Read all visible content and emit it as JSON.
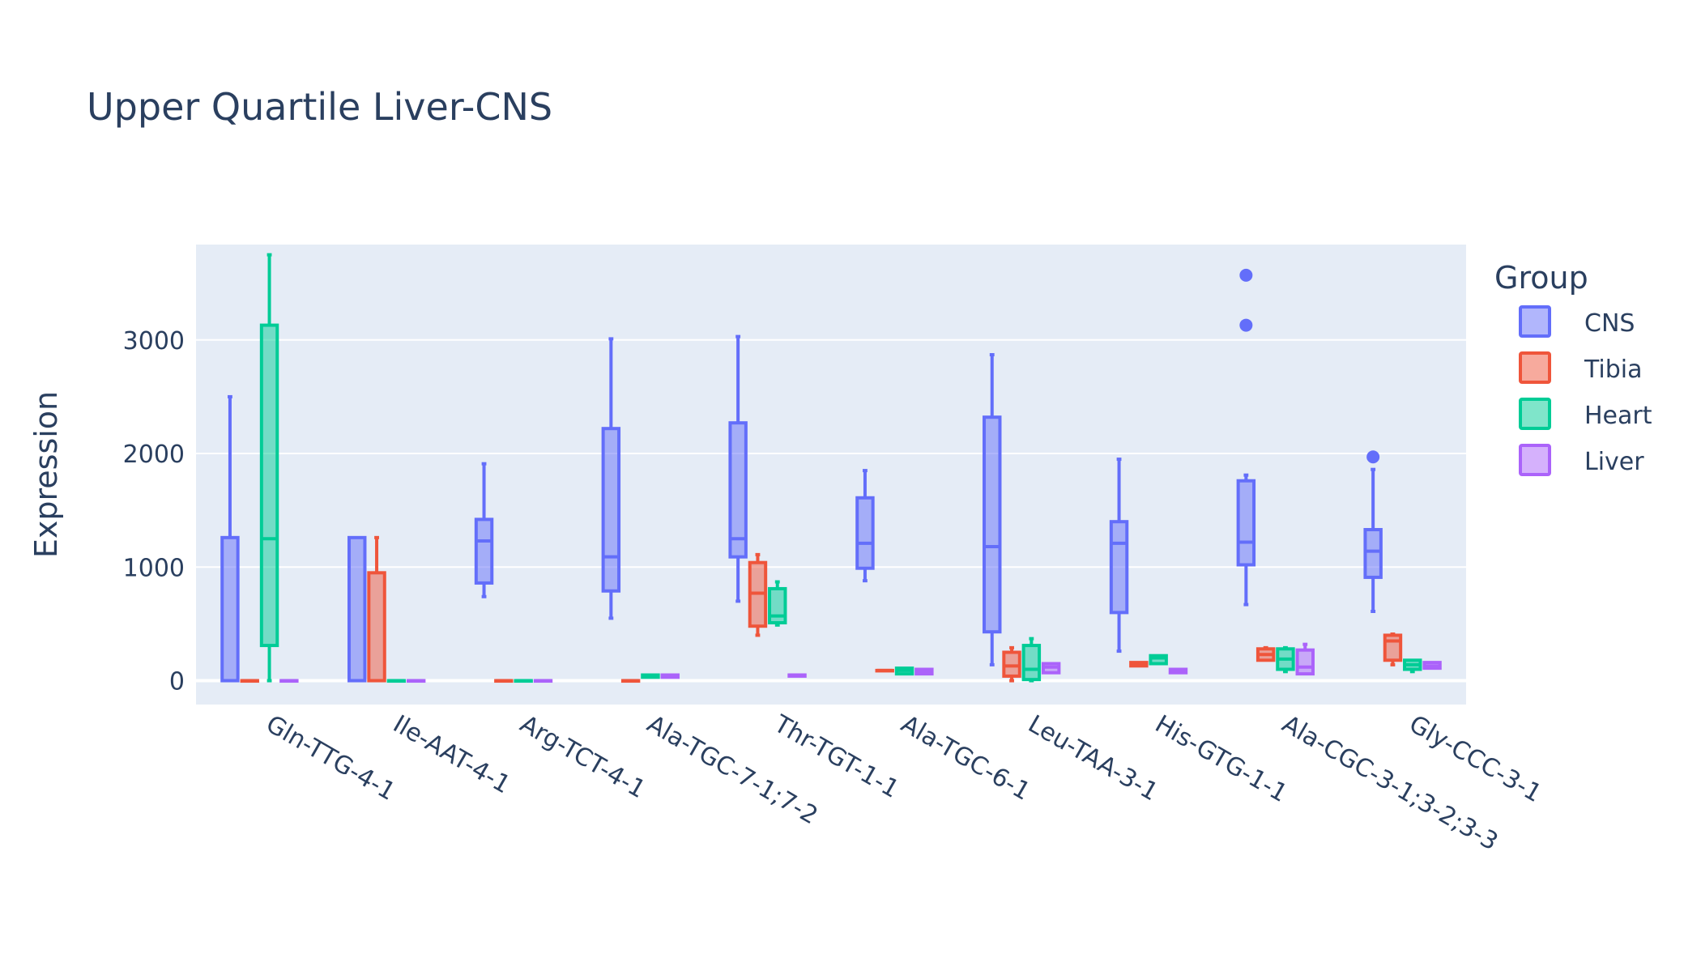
{
  "chart_data": {
    "type": "box",
    "title": "Upper Quartile Liver-CNS",
    "xlabel": "",
    "ylabel": "Expression",
    "ylim": [
      -210,
      3840
    ],
    "yticks": [
      0,
      1000,
      2000,
      3000
    ],
    "categories": [
      "Gln-TTG-4-1",
      "Ile-AAT-4-1",
      "Arg-TCT-4-1",
      "Ala-TGC-7-1;7-2",
      "Thr-TGT-1-1",
      "Ala-TGC-6-1",
      "Leu-TAA-3-1",
      "His-GTG-1-1",
      "Ala-CGC-3-1;3-2;3-3",
      "Gly-CCC-3-1"
    ],
    "legend": {
      "title": "Group",
      "position": "right"
    },
    "grid": true,
    "series": [
      {
        "name": "CNS",
        "color": "#636efa",
        "boxes": [
          {
            "min": 0,
            "q1": 0,
            "median": 0,
            "q3": 1260,
            "max": 2500,
            "outliers": []
          },
          {
            "min": 0,
            "q1": 0,
            "median": 0,
            "q3": 1260,
            "max": 1260,
            "outliers": []
          },
          {
            "min": 740,
            "q1": 860,
            "median": 1230,
            "q3": 1420,
            "max": 1910,
            "outliers": []
          },
          {
            "min": 550,
            "q1": 790,
            "median": 1090,
            "q3": 2220,
            "max": 3010,
            "outliers": []
          },
          {
            "min": 700,
            "q1": 1090,
            "median": 1250,
            "q3": 2270,
            "max": 3030,
            "outliers": []
          },
          {
            "min": 880,
            "q1": 990,
            "median": 1210,
            "q3": 1610,
            "max": 1850,
            "outliers": []
          },
          {
            "min": 140,
            "q1": 430,
            "median": 1180,
            "q3": 2320,
            "max": 2870,
            "outliers": []
          },
          {
            "min": 260,
            "q1": 600,
            "median": 1210,
            "q3": 1400,
            "max": 1950,
            "outliers": []
          },
          {
            "min": 670,
            "q1": 1020,
            "median": 1220,
            "q3": 1760,
            "max": 1810,
            "outliers": [
              3570,
              3130
            ]
          },
          {
            "min": 610,
            "q1": 910,
            "median": 1140,
            "q3": 1330,
            "max": 1860,
            "outliers": [
              1970
            ]
          }
        ]
      },
      {
        "name": "Tibia",
        "color": "#ef553b",
        "boxes": [
          {
            "min": 0,
            "q1": 0,
            "median": 0,
            "q3": 0,
            "max": 0,
            "outliers": []
          },
          {
            "min": 0,
            "q1": 0,
            "median": 0,
            "q3": 950,
            "max": 1260,
            "outliers": []
          },
          {
            "min": 0,
            "q1": 0,
            "median": 0,
            "q3": 0,
            "max": 0,
            "outliers": []
          },
          {
            "min": 0,
            "q1": 0,
            "median": 0,
            "q3": 0,
            "max": 0,
            "outliers": []
          },
          {
            "min": 400,
            "q1": 480,
            "median": 770,
            "q3": 1040,
            "max": 1110,
            "outliers": []
          },
          {
            "min": 90,
            "q1": 90,
            "median": 90,
            "q3": 90,
            "max": 90,
            "outliers": []
          },
          {
            "min": 0,
            "q1": 40,
            "median": 130,
            "q3": 250,
            "max": 290,
            "outliers": []
          },
          {
            "min": 130,
            "q1": 130,
            "median": 150,
            "q3": 160,
            "max": 160,
            "outliers": []
          },
          {
            "min": 180,
            "q1": 180,
            "median": 230,
            "q3": 280,
            "max": 290,
            "outliers": []
          },
          {
            "min": 140,
            "q1": 180,
            "median": 350,
            "q3": 400,
            "max": 410,
            "outliers": []
          }
        ]
      },
      {
        "name": "Heart",
        "color": "#00cc96",
        "boxes": [
          {
            "min": 0,
            "q1": 310,
            "median": 1250,
            "q3": 3130,
            "max": 3750,
            "outliers": []
          },
          {
            "min": 0,
            "q1": 0,
            "median": 0,
            "q3": 0,
            "max": 0,
            "outliers": []
          },
          {
            "min": 0,
            "q1": 0,
            "median": 0,
            "q3": 0,
            "max": 0,
            "outliers": []
          },
          {
            "min": 30,
            "q1": 30,
            "median": 40,
            "q3": 50,
            "max": 50,
            "outliers": []
          },
          {
            "min": 490,
            "q1": 510,
            "median": 570,
            "q3": 810,
            "max": 870,
            "outliers": []
          },
          {
            "min": 60,
            "q1": 60,
            "median": 90,
            "q3": 110,
            "max": 110,
            "outliers": []
          },
          {
            "min": 0,
            "q1": 10,
            "median": 100,
            "q3": 310,
            "max": 370,
            "outliers": []
          },
          {
            "min": 150,
            "q1": 150,
            "median": 200,
            "q3": 220,
            "max": 220,
            "outliers": []
          },
          {
            "min": 80,
            "q1": 100,
            "median": 190,
            "q3": 280,
            "max": 290,
            "outliers": []
          },
          {
            "min": 80,
            "q1": 100,
            "median": 140,
            "q3": 180,
            "max": 180,
            "outliers": []
          }
        ]
      },
      {
        "name": "Liver",
        "color": "#ab63fa",
        "boxes": [
          {
            "min": 0,
            "q1": 0,
            "median": 0,
            "q3": 0,
            "max": 0,
            "outliers": []
          },
          {
            "min": 0,
            "q1": 0,
            "median": 0,
            "q3": 0,
            "max": 0,
            "outliers": []
          },
          {
            "min": 0,
            "q1": 0,
            "median": 0,
            "q3": 0,
            "max": 0,
            "outliers": []
          },
          {
            "min": 30,
            "q1": 30,
            "median": 40,
            "q3": 50,
            "max": 50,
            "outliers": []
          },
          {
            "min": 40,
            "q1": 40,
            "median": 50,
            "q3": 50,
            "max": 50,
            "outliers": []
          },
          {
            "min": 60,
            "q1": 60,
            "median": 80,
            "q3": 100,
            "max": 100,
            "outliers": []
          },
          {
            "min": 70,
            "q1": 70,
            "median": 120,
            "q3": 150,
            "max": 150,
            "outliers": []
          },
          {
            "min": 70,
            "q1": 70,
            "median": 80,
            "q3": 100,
            "max": 100,
            "outliers": []
          },
          {
            "min": 60,
            "q1": 60,
            "median": 120,
            "q3": 270,
            "max": 320,
            "outliers": []
          },
          {
            "min": 110,
            "q1": 110,
            "median": 130,
            "q3": 160,
            "max": 160,
            "outliers": []
          }
        ]
      }
    ]
  }
}
